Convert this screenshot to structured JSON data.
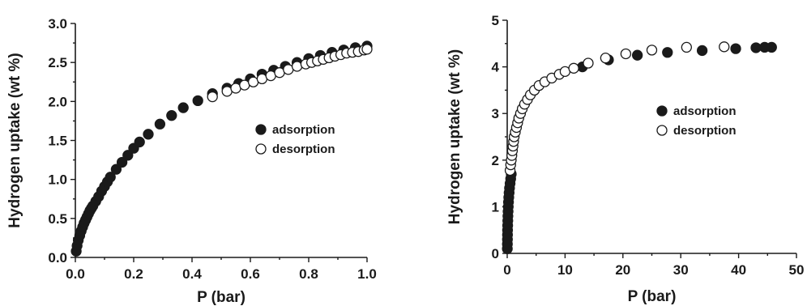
{
  "chart_data": [
    {
      "type": "scatter",
      "title": "",
      "xlabel": "P (bar)",
      "ylabel": "Hydrogen uptake (wt %)",
      "xlim": [
        0,
        1.0
      ],
      "ylim": [
        0,
        3.0
      ],
      "xticks": [
        "0.0",
        "0.2",
        "0.4",
        "0.6",
        "0.8",
        "1.0"
      ],
      "yticks": [
        "0.0",
        "0.5",
        "1.0",
        "1.5",
        "2.0",
        "2.5",
        "3.0"
      ],
      "legend_position": "right-middle",
      "grid": false,
      "series": [
        {
          "name": "adsorption",
          "marker": "filled-circle",
          "color": "#1a1a1a",
          "points": [
            [
              0.003,
              0.08
            ],
            [
              0.006,
              0.15
            ],
            [
              0.01,
              0.22
            ],
            [
              0.015,
              0.28
            ],
            [
              0.02,
              0.34
            ],
            [
              0.025,
              0.39
            ],
            [
              0.03,
              0.44
            ],
            [
              0.035,
              0.48
            ],
            [
              0.04,
              0.52
            ],
            [
              0.045,
              0.56
            ],
            [
              0.05,
              0.6
            ],
            [
              0.055,
              0.63
            ],
            [
              0.06,
              0.66
            ],
            [
              0.07,
              0.72
            ],
            [
              0.08,
              0.78
            ],
            [
              0.09,
              0.85
            ],
            [
              0.1,
              0.91
            ],
            [
              0.11,
              0.97
            ],
            [
              0.12,
              1.03
            ],
            [
              0.14,
              1.13
            ],
            [
              0.16,
              1.22
            ],
            [
              0.18,
              1.31
            ],
            [
              0.2,
              1.4
            ],
            [
              0.22,
              1.48
            ],
            [
              0.25,
              1.58
            ],
            [
              0.29,
              1.71
            ],
            [
              0.33,
              1.82
            ],
            [
              0.37,
              1.92
            ],
            [
              0.42,
              2.01
            ],
            [
              0.47,
              2.1
            ],
            [
              0.52,
              2.17
            ],
            [
              0.56,
              2.23
            ],
            [
              0.6,
              2.29
            ],
            [
              0.64,
              2.35
            ],
            [
              0.68,
              2.4
            ],
            [
              0.72,
              2.45
            ],
            [
              0.76,
              2.5
            ],
            [
              0.8,
              2.55
            ],
            [
              0.84,
              2.59
            ],
            [
              0.88,
              2.63
            ],
            [
              0.92,
              2.66
            ],
            [
              0.96,
              2.69
            ],
            [
              1.0,
              2.71
            ]
          ]
        },
        {
          "name": "desorption",
          "marker": "open-circle",
          "color": "#1a1a1a",
          "points": [
            [
              0.47,
              2.06
            ],
            [
              0.52,
              2.13
            ],
            [
              0.55,
              2.17
            ],
            [
              0.58,
              2.21
            ],
            [
              0.61,
              2.25
            ],
            [
              0.64,
              2.29
            ],
            [
              0.67,
              2.33
            ],
            [
              0.7,
              2.37
            ],
            [
              0.73,
              2.41
            ],
            [
              0.76,
              2.45
            ],
            [
              0.79,
              2.48
            ],
            [
              0.81,
              2.5
            ],
            [
              0.83,
              2.52
            ],
            [
              0.85,
              2.54
            ],
            [
              0.87,
              2.56
            ],
            [
              0.89,
              2.58
            ],
            [
              0.91,
              2.6
            ],
            [
              0.93,
              2.62
            ],
            [
              0.95,
              2.63
            ],
            [
              0.97,
              2.64
            ],
            [
              0.99,
              2.66
            ],
            [
              1.0,
              2.67
            ]
          ]
        }
      ]
    },
    {
      "type": "scatter",
      "title": "",
      "xlabel": "P (bar)",
      "ylabel": "Hydrogen uptake (wt %)",
      "xlim": [
        0,
        50
      ],
      "ylim": [
        0,
        5
      ],
      "xticks": [
        "0",
        "10",
        "20",
        "30",
        "40",
        "50"
      ],
      "yticks": [
        "0",
        "1",
        "2",
        "3",
        "4",
        "5"
      ],
      "legend_position": "right-middle",
      "grid": false,
      "series": [
        {
          "name": "adsorption",
          "marker": "filled-circle",
          "color": "#1a1a1a",
          "points": [
            [
              0.02,
              0.1
            ],
            [
              0.03,
              0.2
            ],
            [
              0.04,
              0.3
            ],
            [
              0.05,
              0.4
            ],
            [
              0.06,
              0.5
            ],
            [
              0.08,
              0.6
            ],
            [
              0.1,
              0.7
            ],
            [
              0.12,
              0.8
            ],
            [
              0.15,
              0.9
            ],
            [
              0.18,
              1.0
            ],
            [
              0.22,
              1.1
            ],
            [
              0.27,
              1.2
            ],
            [
              0.33,
              1.3
            ],
            [
              0.4,
              1.4
            ],
            [
              0.5,
              1.5
            ],
            [
              0.6,
              1.6
            ],
            [
              0.7,
              1.7
            ],
            [
              13.0,
              4.0
            ],
            [
              17.5,
              4.15
            ],
            [
              22.5,
              4.25
            ],
            [
              27.7,
              4.31
            ],
            [
              33.7,
              4.35
            ],
            [
              39.5,
              4.39
            ],
            [
              43.0,
              4.41
            ],
            [
              44.5,
              4.42
            ],
            [
              45.7,
              4.42
            ]
          ]
        },
        {
          "name": "desorption",
          "marker": "open-circle",
          "color": "#1a1a1a",
          "points": [
            [
              0.5,
              1.78
            ],
            [
              0.6,
              1.9
            ],
            [
              0.7,
              2.0
            ],
            [
              0.8,
              2.1
            ],
            [
              0.9,
              2.2
            ],
            [
              1.0,
              2.3
            ],
            [
              1.1,
              2.4
            ],
            [
              1.2,
              2.5
            ],
            [
              1.4,
              2.6
            ],
            [
              1.6,
              2.7
            ],
            [
              1.8,
              2.8
            ],
            [
              2.0,
              2.9
            ],
            [
              2.3,
              3.0
            ],
            [
              2.6,
              3.1
            ],
            [
              3.0,
              3.2
            ],
            [
              3.5,
              3.3
            ],
            [
              4.0,
              3.4
            ],
            [
              4.7,
              3.5
            ],
            [
              5.5,
              3.6
            ],
            [
              6.5,
              3.68
            ],
            [
              7.7,
              3.76
            ],
            [
              9.0,
              3.84
            ],
            [
              10.0,
              3.9
            ],
            [
              11.5,
              3.97
            ],
            [
              14.0,
              4.08
            ],
            [
              17.0,
              4.19
            ],
            [
              20.5,
              4.28
            ],
            [
              25.0,
              4.36
            ],
            [
              31.0,
              4.42
            ],
            [
              37.5,
              4.43
            ]
          ]
        }
      ]
    }
  ]
}
